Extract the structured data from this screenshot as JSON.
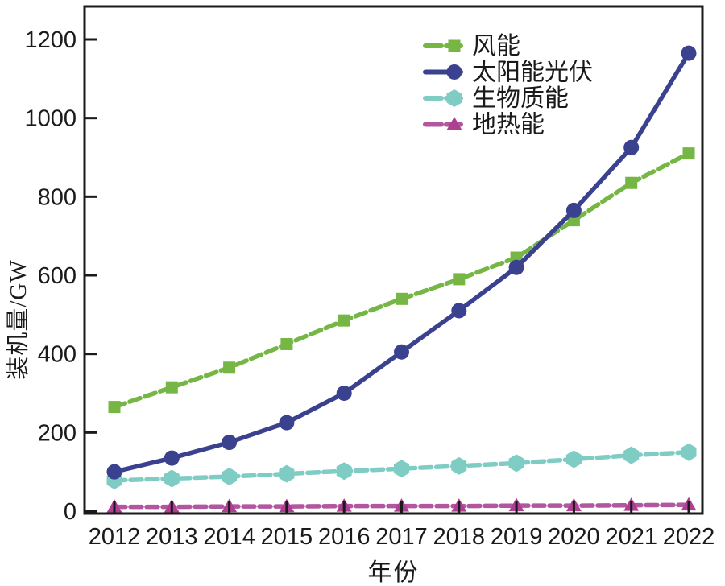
{
  "chart_data": {
    "type": "line",
    "title": "",
    "xlabel": "年份",
    "ylabel": "装机量/GW",
    "x": [
      2012,
      2013,
      2014,
      2015,
      2016,
      2017,
      2018,
      2019,
      2020,
      2021,
      2022
    ],
    "x_tick_labels": [
      "2012",
      "2013",
      "2014",
      "2015",
      "2016",
      "2017",
      "2018",
      "2019",
      "2020",
      "2021",
      "2022"
    ],
    "yticks": [
      0,
      200,
      400,
      600,
      800,
      1000,
      1200
    ],
    "y_tick_labels": [
      "0",
      "200",
      "400",
      "600",
      "800",
      "1000",
      "1200"
    ],
    "ylim": [
      0,
      1280
    ],
    "grid": false,
    "legend_position": "inside-top-center",
    "axis_color": "#1a1a1a",
    "series": [
      {
        "id": "wind",
        "name": "风能",
        "color": "#76b645",
        "marker": "square",
        "line_style": "dashed",
        "values": [
          265,
          315,
          365,
          425,
          485,
          540,
          590,
          645,
          740,
          835,
          910
        ]
      },
      {
        "id": "solar-pv",
        "name": "太阳能光伏",
        "color": "#3a418f",
        "marker": "circle",
        "line_style": "solid",
        "values": [
          100,
          135,
          175,
          225,
          300,
          405,
          510,
          620,
          765,
          925,
          1165
        ]
      },
      {
        "id": "biomass",
        "name": "生物质能",
        "color": "#7fccc4",
        "marker": "hexagon",
        "line_style": "dashed",
        "values": [
          78,
          83,
          88,
          95,
          102,
          108,
          115,
          122,
          132,
          142,
          150
        ]
      },
      {
        "id": "geothermal",
        "name": "地热能",
        "color": "#b1569f",
        "marker_color": "#ae3f92",
        "marker": "triangle",
        "line_style": "dashed",
        "values": [
          11,
          11,
          12,
          12,
          13,
          13,
          13,
          14,
          14,
          15,
          16
        ]
      }
    ]
  }
}
